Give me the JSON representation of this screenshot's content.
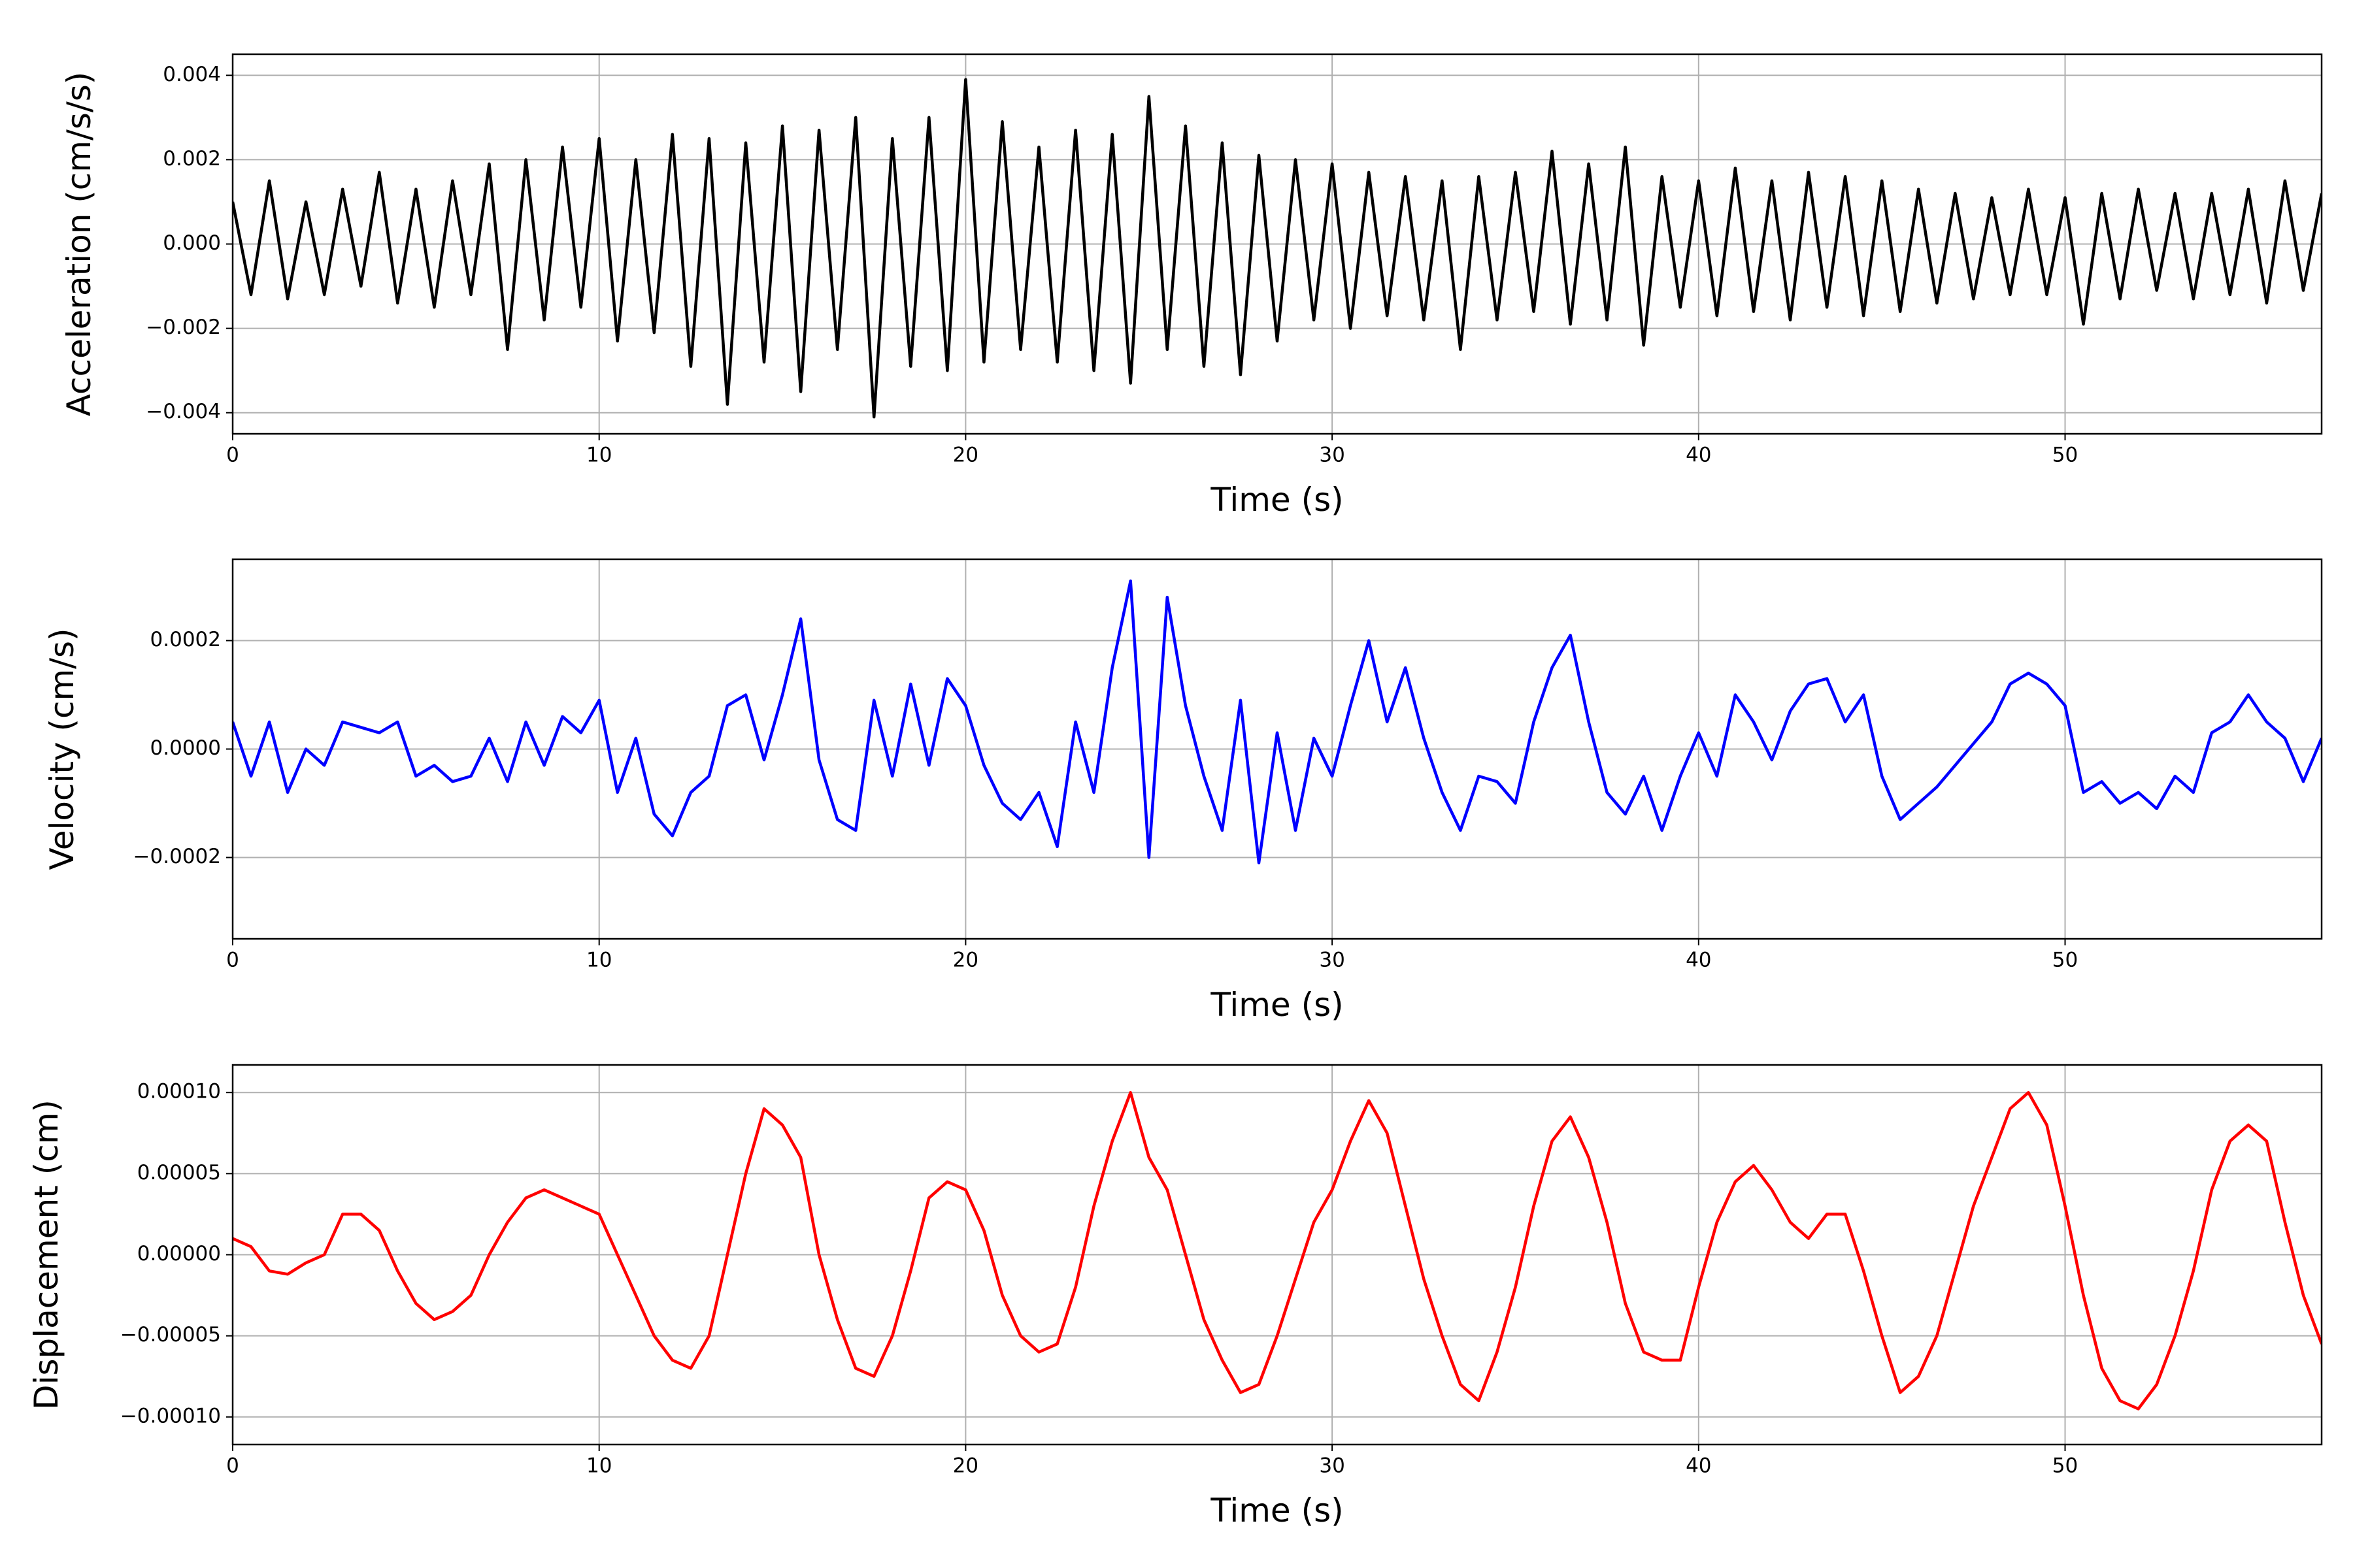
{
  "chart_data": [
    {
      "type": "line",
      "x_label": "Time (s)",
      "y_label": "Acceleration (cm/s/s)",
      "grid": true,
      "xlim": [
        0,
        57
      ],
      "xticks": [
        0,
        10,
        20,
        30,
        40,
        50
      ],
      "ylim": [
        -0.0045,
        0.0045
      ],
      "yticks": [
        {
          "value": -0.004,
          "label": "−0.004"
        },
        {
          "value": -0.002,
          "label": "−0.002"
        },
        {
          "value": 0,
          "label": "0.000"
        },
        0.002,
        0.004
      ],
      "series": [
        {
          "color": "#000000",
          "x": [
            0,
            0.5,
            1,
            1.5,
            2,
            2.5,
            3,
            3.5,
            4,
            4.5,
            5,
            5.5,
            6,
            6.5,
            7,
            7.5,
            8,
            8.5,
            9,
            9.5,
            10,
            10.5,
            11,
            11.5,
            12,
            12.5,
            13,
            13.5,
            14,
            14.5,
            15,
            15.5,
            16,
            16.5,
            17,
            17.5,
            18,
            18.5,
            19,
            19.5,
            20,
            20.5,
            21,
            21.5,
            22,
            22.5,
            23,
            23.5,
            24,
            24.5,
            25,
            25.5,
            26,
            26.5,
            27,
            27.5,
            28,
            28.5,
            29,
            29.5,
            30,
            30.5,
            31,
            31.5,
            32,
            32.5,
            33,
            33.5,
            34,
            34.5,
            35,
            35.5,
            36,
            36.5,
            37,
            37.5,
            38,
            38.5,
            39,
            39.5,
            40,
            40.5,
            41,
            41.5,
            42,
            42.5,
            43,
            43.5,
            44,
            44.5,
            45,
            45.5,
            46,
            46.5,
            47,
            47.5,
            48,
            48.5,
            49,
            49.5,
            50,
            50.5,
            51,
            51.5,
            52,
            52.5,
            53,
            53.5,
            54,
            54.5,
            55,
            55.5,
            56,
            56.5,
            57
          ],
          "values": [
            0.001,
            -0.0012,
            0.0015,
            -0.0013,
            0.001,
            -0.0012,
            0.0013,
            -0.001,
            0.0017,
            -0.0014,
            0.0013,
            -0.0015,
            0.0015,
            -0.0012,
            0.0019,
            -0.0025,
            0.002,
            -0.0018,
            0.0023,
            -0.0015,
            0.0025,
            -0.0023,
            0.002,
            -0.0021,
            0.0026,
            -0.0029,
            0.0025,
            -0.0038,
            0.0024,
            -0.0028,
            0.0028,
            -0.0035,
            0.0027,
            -0.0025,
            0.003,
            -0.0041,
            0.0025,
            -0.0029,
            0.003,
            -0.003,
            0.0039,
            -0.0028,
            0.0029,
            -0.0025,
            0.0023,
            -0.0028,
            0.0027,
            -0.003,
            0.0026,
            -0.0033,
            0.0035,
            -0.0025,
            0.0028,
            -0.0029,
            0.0024,
            -0.0031,
            0.0021,
            -0.0023,
            0.002,
            -0.0018,
            0.0019,
            -0.002,
            0.0017,
            -0.0017,
            0.0016,
            -0.0018,
            0.0015,
            -0.0025,
            0.0016,
            -0.0018,
            0.0017,
            -0.0016,
            0.0022,
            -0.0019,
            0.0019,
            -0.0018,
            0.0023,
            -0.0024,
            0.0016,
            -0.0015,
            0.0015,
            -0.0017,
            0.0018,
            -0.0016,
            0.0015,
            -0.0018,
            0.0017,
            -0.0015,
            0.0016,
            -0.0017,
            0.0015,
            -0.0016,
            0.0013,
            -0.0014,
            0.0012,
            -0.0013,
            0.0011,
            -0.0012,
            0.0013,
            -0.0012,
            0.0011,
            -0.0019,
            0.0012,
            -0.0013,
            0.0013,
            -0.0011,
            0.0012,
            -0.0013,
            0.0012,
            -0.0012,
            0.0013,
            -0.0014,
            0.0015,
            -0.0011,
            0.0012
          ]
        }
      ]
    },
    {
      "type": "line",
      "x_label": "Time (s)",
      "y_label": "Velocity (cm/s)",
      "grid": true,
      "xlim": [
        0,
        57
      ],
      "xticks": [
        0,
        10,
        20,
        30,
        40,
        50
      ],
      "ylim": [
        -0.00035,
        0.00035
      ],
      "yticks": [
        {
          "value": -0.0002,
          "label": "−0.0002"
        },
        {
          "value": 0,
          "label": "0.0000"
        },
        0.0002
      ],
      "series": [
        {
          "color": "#0000ff",
          "x": [
            0,
            0.5,
            1,
            1.5,
            2,
            2.5,
            3,
            3.5,
            4,
            4.5,
            5,
            5.5,
            6,
            6.5,
            7,
            7.5,
            8,
            8.5,
            9,
            9.5,
            10,
            10.5,
            11,
            11.5,
            12,
            12.5,
            13,
            13.5,
            14,
            14.5,
            15,
            15.5,
            16,
            16.5,
            17,
            17.5,
            18,
            18.5,
            19,
            19.5,
            20,
            20.5,
            21,
            21.5,
            22,
            22.5,
            23,
            23.5,
            24,
            24.5,
            25,
            25.5,
            26,
            26.5,
            27,
            27.5,
            28,
            28.5,
            29,
            29.5,
            30,
            30.5,
            31,
            31.5,
            32,
            32.5,
            33,
            33.5,
            34,
            34.5,
            35,
            35.5,
            36,
            36.5,
            37,
            37.5,
            38,
            38.5,
            39,
            39.5,
            40,
            40.5,
            41,
            41.5,
            42,
            42.5,
            43,
            43.5,
            44,
            44.5,
            45,
            45.5,
            46,
            46.5,
            47,
            47.5,
            48,
            48.5,
            49,
            49.5,
            50,
            50.5,
            51,
            51.5,
            52,
            52.5,
            53,
            53.5,
            54,
            54.5,
            55,
            55.5,
            56,
            56.5,
            57
          ],
          "values": [
            5e-05,
            -5e-05,
            5e-05,
            -8e-05,
            0,
            -3e-05,
            5e-05,
            4e-05,
            3e-05,
            5e-05,
            -5e-05,
            -3e-05,
            -6e-05,
            -5e-05,
            2e-05,
            -6e-05,
            5e-05,
            -3e-05,
            6e-05,
            3e-05,
            9e-05,
            -8e-05,
            2e-05,
            -0.00012,
            -0.00016,
            -8e-05,
            -5e-05,
            8e-05,
            0.0001,
            -2e-05,
            0.0001,
            0.00024,
            -2e-05,
            -0.00013,
            -0.00015,
            9e-05,
            -5e-05,
            0.00012,
            -3e-05,
            0.00013,
            8e-05,
            -3e-05,
            -0.0001,
            -0.00013,
            -8e-05,
            -0.00018,
            5e-05,
            -8e-05,
            0.00015,
            0.00031,
            -0.0002,
            0.00028,
            8e-05,
            -5e-05,
            -0.00015,
            9e-05,
            -0.00021,
            3e-05,
            -0.00015,
            2e-05,
            -5e-05,
            8e-05,
            0.0002,
            5e-05,
            0.00015,
            2e-05,
            -8e-05,
            -0.00015,
            -5e-05,
            -6e-05,
            -0.0001,
            5e-05,
            0.00015,
            0.00021,
            5e-05,
            -8e-05,
            -0.00012,
            -5e-05,
            -0.00015,
            -5e-05,
            3e-05,
            -5e-05,
            0.0001,
            5e-05,
            -2e-05,
            7e-05,
            0.00012,
            0.00013,
            5e-05,
            0.0001,
            -5e-05,
            -0.00013,
            -0.0001,
            -7e-05,
            -3e-05,
            1e-05,
            5e-05,
            0.00012,
            0.00014,
            0.00012,
            8e-05,
            -8e-05,
            -6e-05,
            -0.0001,
            -8e-05,
            -0.00011,
            -5e-05,
            -8e-05,
            3e-05,
            5e-05,
            0.0001,
            5e-05,
            2e-05,
            -6e-05,
            2e-05
          ]
        }
      ]
    },
    {
      "type": "line",
      "x_label": "Time (s)",
      "y_label": "Displacement (cm)",
      "grid": true,
      "xlim": [
        0,
        57
      ],
      "xticks": [
        0,
        10,
        20,
        30,
        40,
        50
      ],
      "ylim": [
        -0.000117,
        0.000117
      ],
      "yticks": [
        {
          "value": -0.0001,
          "label": "−0.00010"
        },
        {
          "value": -5e-05,
          "label": "−0.00005"
        },
        {
          "value": 0,
          "label": "0.00000"
        },
        5e-05,
        {
          "value": 0.0001,
          "label": "0.00010"
        }
      ],
      "series": [
        {
          "color": "#ff0000",
          "x": [
            0,
            0.5,
            1,
            1.5,
            2,
            2.5,
            3,
            3.5,
            4,
            4.5,
            5,
            5.5,
            6,
            6.5,
            7,
            7.5,
            8,
            8.5,
            9,
            9.5,
            10,
            10.5,
            11,
            11.5,
            12,
            12.5,
            13,
            13.5,
            14,
            14.5,
            15,
            15.5,
            16,
            16.5,
            17,
            17.5,
            18,
            18.5,
            19,
            19.5,
            20,
            20.5,
            21,
            21.5,
            22,
            22.5,
            23,
            23.5,
            24,
            24.5,
            25,
            25.5,
            26,
            26.5,
            27,
            27.5,
            28,
            28.5,
            29,
            29.5,
            30,
            30.5,
            31,
            31.5,
            32,
            32.5,
            33,
            33.5,
            34,
            34.5,
            35,
            35.5,
            36,
            36.5,
            37,
            37.5,
            38,
            38.5,
            39,
            39.5,
            40,
            40.5,
            41,
            41.5,
            42,
            42.5,
            43,
            43.5,
            44,
            44.5,
            45,
            45.5,
            46,
            46.5,
            47,
            47.5,
            48,
            48.5,
            49,
            49.5,
            50,
            50.5,
            51,
            51.5,
            52,
            52.5,
            53,
            53.5,
            54,
            54.5,
            55,
            55.5,
            56,
            56.5,
            57
          ],
          "values": [
            1e-05,
            5e-06,
            -1e-05,
            -1.2e-05,
            -5e-06,
            0,
            2.5e-05,
            2.5e-05,
            1.5e-05,
            -1e-05,
            -3e-05,
            -4e-05,
            -3.5e-05,
            -2.5e-05,
            0,
            2e-05,
            3.5e-05,
            4e-05,
            3.5e-05,
            3e-05,
            2.5e-05,
            0,
            -2.5e-05,
            -5e-05,
            -6.5e-05,
            -7e-05,
            -5e-05,
            0,
            5e-05,
            9e-05,
            8e-05,
            6e-05,
            0,
            -4e-05,
            -7e-05,
            -7.5e-05,
            -5e-05,
            -1e-05,
            3.5e-05,
            4.5e-05,
            4e-05,
            1.5e-05,
            -2.5e-05,
            -5e-05,
            -6e-05,
            -5.5e-05,
            -2e-05,
            3e-05,
            7e-05,
            0.0001,
            6e-05,
            4e-05,
            0,
            -4e-05,
            -6.5e-05,
            -8.5e-05,
            -8e-05,
            -5e-05,
            -1.5e-05,
            2e-05,
            4e-05,
            7e-05,
            9.5e-05,
            7.5e-05,
            3e-05,
            -1.5e-05,
            -5e-05,
            -8e-05,
            -9e-05,
            -6e-05,
            -2e-05,
            3e-05,
            7e-05,
            8.5e-05,
            6e-05,
            2e-05,
            -3e-05,
            -6e-05,
            -6.5e-05,
            -6.5e-05,
            -2e-05,
            2e-05,
            4.5e-05,
            5.5e-05,
            4e-05,
            2e-05,
            1e-05,
            2.5e-05,
            2.5e-05,
            -1e-05,
            -5e-05,
            -8.5e-05,
            -7.5e-05,
            -5e-05,
            -1e-05,
            3e-05,
            6e-05,
            9e-05,
            0.0001,
            8e-05,
            3e-05,
            -2.5e-05,
            -7e-05,
            -9e-05,
            -9.5e-05,
            -8e-05,
            -5e-05,
            -1e-05,
            4e-05,
            7e-05,
            8e-05,
            7e-05,
            2e-05,
            -2.5e-05,
            -5.5e-05
          ]
        }
      ]
    }
  ]
}
